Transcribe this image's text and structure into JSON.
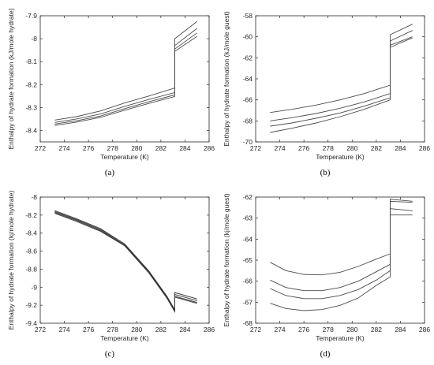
{
  "chart_data": [
    {
      "type": "line",
      "panel_label": "(a)",
      "xlabel": "Temperature (K)",
      "ylabel": "Enthalpy of hydrate formation (kJ/mole hydrate)",
      "xlim": [
        272,
        286
      ],
      "ylim": [
        -8.45,
        -7.9
      ],
      "xticks": [
        272,
        274,
        276,
        278,
        280,
        282,
        284,
        286
      ],
      "yticks": [
        -8.4,
        -8.3,
        -8.2,
        -8.1,
        -8,
        -7.9
      ],
      "grid": false,
      "line_color": "#4a4a4a",
      "series": [
        {
          "x": [
            273.2,
            275,
            277,
            279,
            281,
            283.15,
            283.15,
            285
          ],
          "y": [
            -8.355,
            -8.34,
            -8.315,
            -8.28,
            -8.25,
            -8.215,
            -8.0,
            -7.925
          ]
        },
        {
          "x": [
            273.2,
            275,
            277,
            279,
            281,
            283.15,
            283.15,
            285
          ],
          "y": [
            -8.365,
            -8.35,
            -8.328,
            -8.295,
            -8.265,
            -8.235,
            -8.03,
            -7.955
          ]
        },
        {
          "x": [
            273.2,
            275,
            277,
            279,
            281,
            283.15,
            283.15,
            285
          ],
          "y": [
            -8.372,
            -8.358,
            -8.337,
            -8.305,
            -8.275,
            -8.245,
            -8.045,
            -7.975
          ]
        },
        {
          "x": [
            273.2,
            275,
            277,
            279,
            281,
            283.15,
            283.15,
            285
          ],
          "y": [
            -8.378,
            -8.364,
            -8.343,
            -8.312,
            -8.282,
            -8.252,
            -8.055,
            -7.99
          ]
        }
      ]
    },
    {
      "type": "line",
      "panel_label": "(b)",
      "xlabel": "Temperature (K)",
      "ylabel": "Enthalpy of hydrate formation (kJ/mole guest)",
      "xlim": [
        272,
        286
      ],
      "ylim": [
        -70,
        -58
      ],
      "xticks": [
        272,
        274,
        276,
        278,
        280,
        282,
        284,
        286
      ],
      "yticks": [
        -70,
        -68,
        -66,
        -64,
        -62,
        -60,
        -58
      ],
      "grid": false,
      "line_color": "#4a4a4a",
      "series": [
        {
          "x": [
            273.2,
            275,
            277,
            279,
            281,
            283.15,
            283.15,
            285
          ],
          "y": [
            -67.2,
            -66.9,
            -66.5,
            -66.0,
            -65.4,
            -64.6,
            -59.8,
            -58.8
          ]
        },
        {
          "x": [
            273.2,
            275,
            277,
            279,
            281,
            283.15,
            283.15,
            285
          ],
          "y": [
            -68.0,
            -67.7,
            -67.3,
            -66.8,
            -66.2,
            -65.4,
            -60.4,
            -59.4
          ]
        },
        {
          "x": [
            273.2,
            275,
            277,
            279,
            281,
            283.15,
            283.15,
            285
          ],
          "y": [
            -68.5,
            -68.2,
            -67.75,
            -67.25,
            -66.6,
            -65.8,
            -60.8,
            -60.0
          ]
        },
        {
          "x": [
            273.2,
            275,
            277,
            279,
            281,
            283.15,
            283.15,
            285
          ],
          "y": [
            -69.1,
            -68.7,
            -68.2,
            -67.6,
            -66.9,
            -66.0,
            -61.0,
            -60.1
          ]
        }
      ]
    },
    {
      "type": "line",
      "panel_label": "(c)",
      "xlabel": "Temperature (K)",
      "ylabel": "Enthalpy of hydrate formation (kj/mole hydrate)",
      "xlim": [
        272,
        286
      ],
      "ylim": [
        -9.4,
        -8.0
      ],
      "xticks": [
        272,
        274,
        276,
        278,
        280,
        282,
        284,
        286
      ],
      "yticks": [
        -9.4,
        -9.2,
        -9,
        -8.8,
        -8.6,
        -8.4,
        -8.2,
        -8
      ],
      "grid": false,
      "line_color": "#333333",
      "series": [
        {
          "x": [
            273.2,
            275,
            277,
            279,
            281,
            282.5,
            283.15,
            283.15,
            285
          ],
          "y": [
            -8.15,
            -8.24,
            -8.35,
            -8.52,
            -8.82,
            -9.1,
            -9.25,
            -9.06,
            -9.13
          ]
        },
        {
          "x": [
            273.2,
            275,
            277,
            279,
            281,
            282.5,
            283.15,
            283.15,
            285
          ],
          "y": [
            -8.16,
            -8.25,
            -8.36,
            -8.53,
            -8.83,
            -9.11,
            -9.26,
            -9.08,
            -9.15
          ]
        },
        {
          "x": [
            273.2,
            275,
            277,
            279,
            281,
            282.5,
            283.15,
            283.15,
            285
          ],
          "y": [
            -8.17,
            -8.26,
            -8.37,
            -8.54,
            -8.84,
            -9.12,
            -9.27,
            -9.1,
            -9.17
          ]
        },
        {
          "x": [
            273.2,
            275,
            277,
            279,
            281,
            282.5,
            283.15,
            283.15,
            285
          ],
          "y": [
            -8.18,
            -8.27,
            -8.38,
            -8.54,
            -8.84,
            -9.12,
            -9.27,
            -9.11,
            -9.18
          ]
        }
      ]
    },
    {
      "type": "line",
      "panel_label": "(d)",
      "xlabel": "Temperature (K)",
      "ylabel": "Enthalpy of hydrate formation (kj/mole guest)",
      "xlim": [
        272,
        286
      ],
      "ylim": [
        -68,
        -62
      ],
      "xticks": [
        272,
        274,
        276,
        278,
        280,
        282,
        284,
        286
      ],
      "yticks": [
        -68,
        -67,
        -66,
        -65,
        -64,
        -63,
        -62
      ],
      "grid": false,
      "line_color": "#4a4a4a",
      "series": [
        {
          "x": [
            273.2,
            274.5,
            276,
            277.5,
            279,
            280.5,
            282,
            283.15,
            283.15,
            285
          ],
          "y": [
            -65.1,
            -65.5,
            -65.68,
            -65.7,
            -65.58,
            -65.3,
            -64.95,
            -64.7,
            -62.1,
            -62.2
          ]
        },
        {
          "x": [
            273.2,
            274.5,
            276,
            277.5,
            279,
            280.5,
            282,
            283.15,
            283.15,
            285
          ],
          "y": [
            -65.95,
            -66.3,
            -66.45,
            -66.45,
            -66.3,
            -66.0,
            -65.55,
            -65.2,
            -62.55,
            -62.65
          ]
        },
        {
          "x": [
            273.2,
            274.5,
            276,
            277.5,
            279,
            280.5,
            282,
            283.15,
            283.15,
            285
          ],
          "y": [
            -66.35,
            -66.68,
            -66.83,
            -66.83,
            -66.68,
            -66.4,
            -65.95,
            -65.5,
            -62.85,
            -62.85
          ]
        },
        {
          "x": [
            273.2,
            274.5,
            276,
            277.5,
            279,
            280.5,
            282,
            283.15,
            283.15,
            285
          ],
          "y": [
            -67.05,
            -67.3,
            -67.4,
            -67.35,
            -67.15,
            -66.8,
            -66.2,
            -65.8,
            -62.2,
            -62.25
          ]
        }
      ]
    }
  ]
}
